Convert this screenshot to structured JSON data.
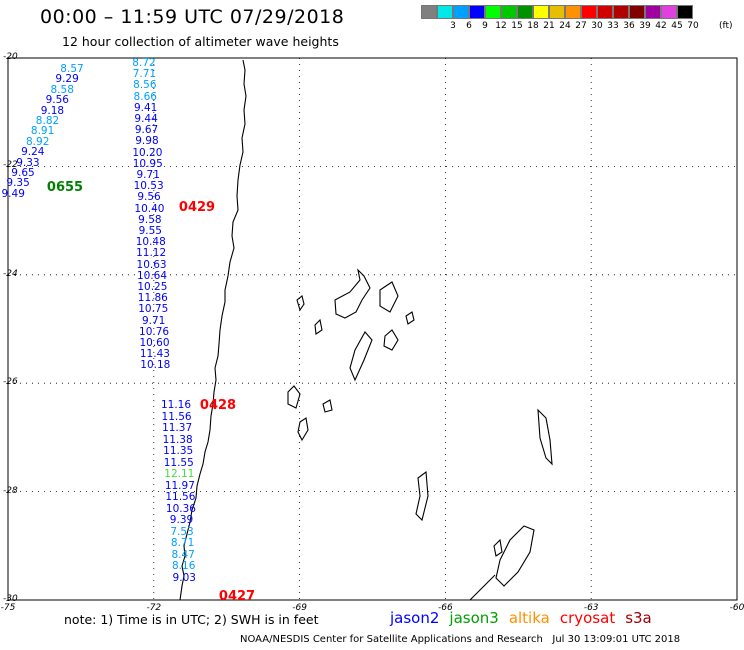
{
  "header": {
    "title": "00:00 – 11:59 UTC 07/29/2018",
    "subtitle": "12 hour collection of altimeter wave heights"
  },
  "legend": {
    "unit": "(ft)",
    "items": [
      {
        "label": "",
        "color": "#808080"
      },
      {
        "label": "3",
        "color": "#00e8e8"
      },
      {
        "label": "6",
        "color": "#00a0ff"
      },
      {
        "label": "9",
        "color": "#0000ff"
      },
      {
        "label": "12",
        "color": "#00ff00"
      },
      {
        "label": "15",
        "color": "#00c800"
      },
      {
        "label": "18",
        "color": "#009000"
      },
      {
        "label": "21",
        "color": "#ffff00"
      },
      {
        "label": "24",
        "color": "#e6c000"
      },
      {
        "label": "27",
        "color": "#ff9000"
      },
      {
        "label": "30",
        "color": "#ff0000"
      },
      {
        "label": "33",
        "color": "#d00000"
      },
      {
        "label": "36",
        "color": "#b00000"
      },
      {
        "label": "39",
        "color": "#800000"
      },
      {
        "label": "42",
        "color": "#a000a0"
      },
      {
        "label": "45",
        "color": "#e040e0"
      },
      {
        "label": "70",
        "color": "#000000"
      }
    ]
  },
  "map": {
    "lat_labels": [
      "-20",
      "-22",
      "-24",
      "-26",
      "-28",
      "-30"
    ],
    "lon_labels": [
      "-75",
      "-72",
      "-69",
      "-66",
      "-63",
      "-60"
    ],
    "tracks": [
      {
        "name": "track-0655",
        "label": "0655",
        "label_color": "#008000",
        "values": [
          {
            "v": "8.57",
            "c": "#00a0ff"
          },
          {
            "v": "9.29",
            "c": "#0000ff"
          },
          {
            "v": "8.58",
            "c": "#00a0ff"
          },
          {
            "v": "9.56",
            "c": "#0000ff"
          },
          {
            "v": "9.18",
            "c": "#0000ff"
          },
          {
            "v": "8.82",
            "c": "#00a0ff"
          },
          {
            "v": "8.91",
            "c": "#00a0ff"
          },
          {
            "v": "8.92",
            "c": "#00a0ff"
          },
          {
            "v": "9.24",
            "c": "#0000ff"
          },
          {
            "v": "9.33",
            "c": "#0000ff"
          },
          {
            "v": "9.65",
            "c": "#0000ff"
          },
          {
            "v": "9.35",
            "c": "#0000ff"
          },
          {
            "v": "9.49",
            "c": "#0000ff"
          }
        ]
      },
      {
        "name": "track-0429",
        "label": "0429",
        "label_color": "#ff0000",
        "values": [
          {
            "v": "8.72",
            "c": "#00a0ff"
          },
          {
            "v": "7.71",
            "c": "#00a0ff"
          },
          {
            "v": "8.56",
            "c": "#00a0ff"
          },
          {
            "v": "8.66",
            "c": "#00a0ff"
          },
          {
            "v": "9.41",
            "c": "#0000ff"
          },
          {
            "v": "9.44",
            "c": "#0000ff"
          },
          {
            "v": "9.67",
            "c": "#0000ff"
          },
          {
            "v": "9.98",
            "c": "#0000ff"
          },
          {
            "v": "10.20",
            "c": "#0000ff"
          },
          {
            "v": "10.95",
            "c": "#0000ff"
          },
          {
            "v": "9.71",
            "c": "#0000ff"
          },
          {
            "v": "10.53",
            "c": "#0000ff"
          },
          {
            "v": "9.56",
            "c": "#0000ff"
          },
          {
            "v": "10.40",
            "c": "#0000ff"
          },
          {
            "v": "9.58",
            "c": "#0000ff"
          },
          {
            "v": "9.55",
            "c": "#0000ff"
          },
          {
            "v": "10.48",
            "c": "#0000ff"
          },
          {
            "v": "11.12",
            "c": "#0000ff"
          },
          {
            "v": "10.63",
            "c": "#0000ff"
          },
          {
            "v": "10.64",
            "c": "#0000ff"
          },
          {
            "v": "10.25",
            "c": "#0000ff"
          },
          {
            "v": "11.86",
            "c": "#0000ff"
          },
          {
            "v": "10.75",
            "c": "#0000ff"
          },
          {
            "v": "9.71",
            "c": "#0000ff"
          },
          {
            "v": "10.76",
            "c": "#0000ff"
          },
          {
            "v": "10.60",
            "c": "#0000ff"
          },
          {
            "v": "11.43",
            "c": "#0000ff"
          },
          {
            "v": "10.18",
            "c": "#0000ff"
          }
        ]
      },
      {
        "name": "track-0428",
        "label": "0428",
        "label_color": "#ff0000",
        "values": [
          {
            "v": "11.16",
            "c": "#0000ff"
          },
          {
            "v": "11.56",
            "c": "#0000ff"
          },
          {
            "v": "11.37",
            "c": "#0000ff"
          },
          {
            "v": "11.38",
            "c": "#0000ff"
          },
          {
            "v": "11.35",
            "c": "#0000ff"
          },
          {
            "v": "11.55",
            "c": "#0000ff"
          },
          {
            "v": "12.11",
            "c": "#40e040"
          },
          {
            "v": "11.97",
            "c": "#0000ff"
          },
          {
            "v": "11.56",
            "c": "#0000ff"
          },
          {
            "v": "10.36",
            "c": "#0000ff"
          },
          {
            "v": "9.39",
            "c": "#0000ff"
          },
          {
            "v": "7.53",
            "c": "#00a0ff"
          },
          {
            "v": "8.71",
            "c": "#00a0ff"
          },
          {
            "v": "8.47",
            "c": "#00a0ff"
          },
          {
            "v": "8.16",
            "c": "#00a0ff"
          },
          {
            "v": "9.03",
            "c": "#0000ff"
          }
        ]
      },
      {
        "name": "track-0427",
        "label": "0427",
        "label_color": "#ff0000",
        "values": []
      }
    ]
  },
  "footer": {
    "note": "note: 1) Time is in UTC; 2) SWH is in feet",
    "satellites": [
      {
        "name": "jason2",
        "color": "#0000ff"
      },
      {
        "name": "jason3",
        "color": "#00a000"
      },
      {
        "name": "altika",
        "color": "#ff9000"
      },
      {
        "name": "cryosat",
        "color": "#ff0000"
      },
      {
        "name": "s3a",
        "color": "#a00000"
      }
    ],
    "credit": "NOAA/NESDIS Center for Satellite Applications and Research   Jul 30 13:09:01 UTC 2018"
  }
}
